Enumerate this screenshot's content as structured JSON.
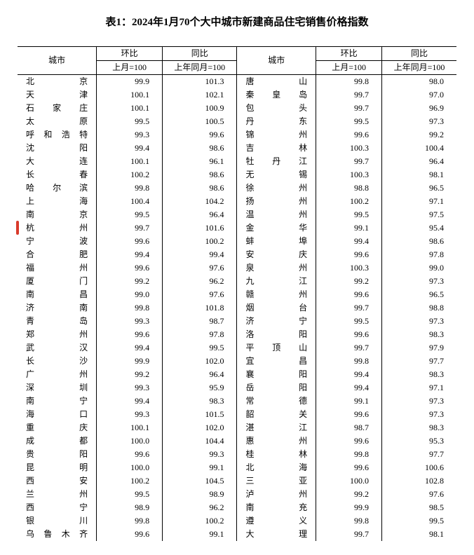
{
  "title": "表1：2024年1月70个大中城市新建商品住宅销售价格指数",
  "header": {
    "city": "城市",
    "mom": "环比",
    "yoy": "同比",
    "mom_base": "上月=100",
    "yoy_base": "上年同月=100"
  },
  "highlight_city": "杭州",
  "highlight_color": "#d93a2b",
  "colors": {
    "text": "#000000",
    "background": "#ffffff",
    "border": "#000000"
  },
  "rows": [
    {
      "c1": "北京",
      "m1": "99.9",
      "y1": "101.3",
      "c2": "唐山",
      "m2": "99.8",
      "y2": "98.0"
    },
    {
      "c1": "天津",
      "m1": "100.1",
      "y1": "102.1",
      "c2": "秦皇岛",
      "m2": "99.7",
      "y2": "97.0"
    },
    {
      "c1": "石家庄",
      "m1": "100.1",
      "y1": "100.9",
      "c2": "包头",
      "m2": "99.7",
      "y2": "96.9"
    },
    {
      "c1": "太原",
      "m1": "99.5",
      "y1": "100.5",
      "c2": "丹东",
      "m2": "99.5",
      "y2": "97.3"
    },
    {
      "c1": "呼和浩特",
      "m1": "99.3",
      "y1": "99.6",
      "c2": "锦州",
      "m2": "99.6",
      "y2": "99.2"
    },
    {
      "c1": "沈阳",
      "m1": "99.4",
      "y1": "98.6",
      "c2": "吉林",
      "m2": "100.3",
      "y2": "100.4"
    },
    {
      "c1": "大连",
      "m1": "100.1",
      "y1": "96.1",
      "c2": "牡丹江",
      "m2": "99.7",
      "y2": "96.4"
    },
    {
      "c1": "长春",
      "m1": "100.2",
      "y1": "98.6",
      "c2": "无锡",
      "m2": "100.3",
      "y2": "98.1"
    },
    {
      "c1": "哈尔滨",
      "m1": "99.8",
      "y1": "98.6",
      "c2": "徐州",
      "m2": "98.8",
      "y2": "96.5"
    },
    {
      "c1": "上海",
      "m1": "100.4",
      "y1": "104.2",
      "c2": "扬州",
      "m2": "100.2",
      "y2": "97.1"
    },
    {
      "c1": "南京",
      "m1": "99.5",
      "y1": "96.4",
      "c2": "温州",
      "m2": "99.5",
      "y2": "97.5"
    },
    {
      "c1": "杭州",
      "m1": "99.7",
      "y1": "101.6",
      "c2": "金华",
      "m2": "99.1",
      "y2": "95.4"
    },
    {
      "c1": "宁波",
      "m1": "99.6",
      "y1": "100.2",
      "c2": "蚌埠",
      "m2": "99.4",
      "y2": "98.6"
    },
    {
      "c1": "合肥",
      "m1": "99.4",
      "y1": "99.4",
      "c2": "安庆",
      "m2": "99.6",
      "y2": "97.8"
    },
    {
      "c1": "福州",
      "m1": "99.6",
      "y1": "97.6",
      "c2": "泉州",
      "m2": "100.3",
      "y2": "99.0"
    },
    {
      "c1": "厦门",
      "m1": "99.2",
      "y1": "96.2",
      "c2": "九江",
      "m2": "99.2",
      "y2": "97.3"
    },
    {
      "c1": "南昌",
      "m1": "99.0",
      "y1": "97.6",
      "c2": "赣州",
      "m2": "99.6",
      "y2": "96.5"
    },
    {
      "c1": "济南",
      "m1": "99.8",
      "y1": "101.8",
      "c2": "烟台",
      "m2": "99.7",
      "y2": "98.8"
    },
    {
      "c1": "青岛",
      "m1": "99.3",
      "y1": "98.7",
      "c2": "济宁",
      "m2": "99.5",
      "y2": "97.3"
    },
    {
      "c1": "郑州",
      "m1": "99.6",
      "y1": "97.8",
      "c2": "洛阳",
      "m2": "99.6",
      "y2": "98.3"
    },
    {
      "c1": "武汉",
      "m1": "99.4",
      "y1": "99.5",
      "c2": "平顶山",
      "m2": "99.7",
      "y2": "97.9"
    },
    {
      "c1": "长沙",
      "m1": "99.9",
      "y1": "102.0",
      "c2": "宜昌",
      "m2": "99.8",
      "y2": "97.7"
    },
    {
      "c1": "广州",
      "m1": "99.2",
      "y1": "96.4",
      "c2": "襄阳",
      "m2": "99.4",
      "y2": "98.3"
    },
    {
      "c1": "深圳",
      "m1": "99.3",
      "y1": "95.9",
      "c2": "岳阳",
      "m2": "99.4",
      "y2": "97.1"
    },
    {
      "c1": "南宁",
      "m1": "99.4",
      "y1": "98.3",
      "c2": "常德",
      "m2": "99.1",
      "y2": "97.3"
    },
    {
      "c1": "海口",
      "m1": "99.3",
      "y1": "101.5",
      "c2": "韶关",
      "m2": "99.6",
      "y2": "97.3"
    },
    {
      "c1": "重庆",
      "m1": "100.1",
      "y1": "102.0",
      "c2": "湛江",
      "m2": "98.7",
      "y2": "98.3"
    },
    {
      "c1": "成都",
      "m1": "100.0",
      "y1": "104.4",
      "c2": "惠州",
      "m2": "99.6",
      "y2": "95.3"
    },
    {
      "c1": "贵阳",
      "m1": "99.6",
      "y1": "99.3",
      "c2": "桂林",
      "m2": "99.8",
      "y2": "97.7"
    },
    {
      "c1": "昆明",
      "m1": "100.0",
      "y1": "99.1",
      "c2": "北海",
      "m2": "99.6",
      "y2": "100.6"
    },
    {
      "c1": "西安",
      "m1": "100.2",
      "y1": "104.5",
      "c2": "三亚",
      "m2": "100.0",
      "y2": "102.8"
    },
    {
      "c1": "兰州",
      "m1": "99.5",
      "y1": "98.9",
      "c2": "泸州",
      "m2": "99.2",
      "y2": "97.6"
    },
    {
      "c1": "西宁",
      "m1": "98.9",
      "y1": "96.2",
      "c2": "南充",
      "m2": "99.9",
      "y2": "98.5"
    },
    {
      "c1": "银川",
      "m1": "99.8",
      "y1": "100.2",
      "c2": "遵义",
      "m2": "99.8",
      "y2": "99.5"
    },
    {
      "c1": "乌鲁木齐",
      "m1": "99.6",
      "y1": "99.1",
      "c2": "大理",
      "m2": "99.7",
      "y2": "98.1"
    }
  ]
}
